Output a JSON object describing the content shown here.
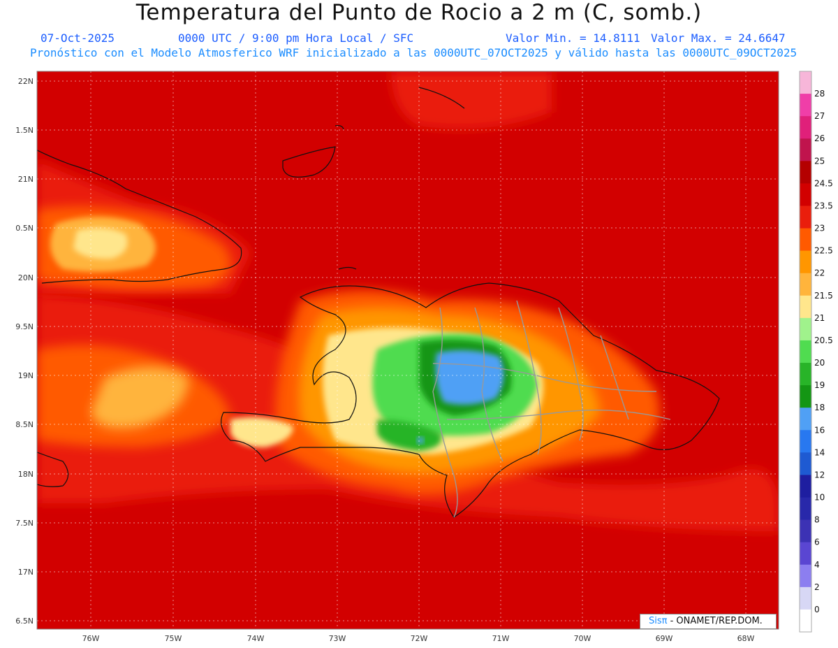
{
  "header": {
    "title": "Temperatura del Punto de Rocio a 2 m (C, somb.)",
    "date": "07-Oct-2025",
    "time_line": "0000 UTC / 9:00 pm Hora Local / SFC",
    "min_label": "Valor Min. = 14.8111",
    "max_label": "Valor Max. = 24.6647",
    "description": "Pronóstico con el Modelo Atmosferico WRF inicializado a las 0000UTC_07OCT2025 y válido hasta las  0000UTC_09OCT2025"
  },
  "map": {
    "lat_labels": [
      "22N",
      "1.5N",
      "21N",
      "0.5N",
      "20N",
      "9.5N",
      "19N",
      "8.5N",
      "18N",
      "7.5N",
      "17N",
      "6.5N"
    ],
    "lon_labels": [
      "76W",
      "75W",
      "74W",
      "73W",
      "72W",
      "71W",
      "70W",
      "69W",
      "68W"
    ]
  },
  "colorbar": {
    "labels": [
      "28",
      "27",
      "26",
      "25",
      "24.5",
      "23.5",
      "23",
      "22.5",
      "22",
      "21.5",
      "21",
      "20.5",
      "20",
      "19",
      "18",
      "16",
      "14",
      "12",
      "10",
      "8",
      "6",
      "4",
      "2",
      "0"
    ],
    "colors": [
      "#f7b6d9",
      "#f03ea8",
      "#e0207a",
      "#c0144d",
      "#b40000",
      "#d20000",
      "#ea1e0c",
      "#ff5a00",
      "#ff9600",
      "#ffb43c",
      "#ffe68c",
      "#a0f28c",
      "#50dc50",
      "#28b428",
      "#149614",
      "#50a0f5",
      "#2878f0",
      "#1e5ad2",
      "#1e1ea0",
      "#2828aa",
      "#3c32b4",
      "#5a46d2",
      "#8c7ef0",
      "#d7d7f5",
      "#ffffff"
    ]
  },
  "credit": {
    "sis": "Sisπ",
    "org": " - ONAMET/REP.DOM."
  }
}
